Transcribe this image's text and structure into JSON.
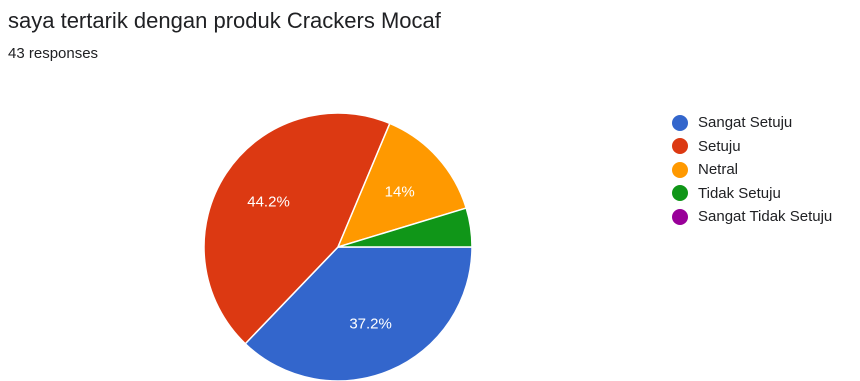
{
  "header": {
    "title": "saya tertarik dengan produk Crackers Mocaf",
    "responses": "43 responses"
  },
  "chart_data": {
    "type": "pie",
    "title": "saya tertarik dengan produk Crackers Mocaf",
    "categories": [
      "Sangat Setuju",
      "Setuju",
      "Netral",
      "Tidak Setuju",
      "Sangat Tidak Setuju"
    ],
    "values": [
      37.2,
      44.2,
      14.0,
      4.7,
      0.0
    ],
    "data_labels": [
      "37.2%",
      "44.2%",
      "14%",
      "",
      ""
    ],
    "colors": [
      "#3366cc",
      "#dc3912",
      "#ff9900",
      "#109618",
      "#990099"
    ],
    "legend_position": "right",
    "start": "3 o'clock, clockwise"
  }
}
